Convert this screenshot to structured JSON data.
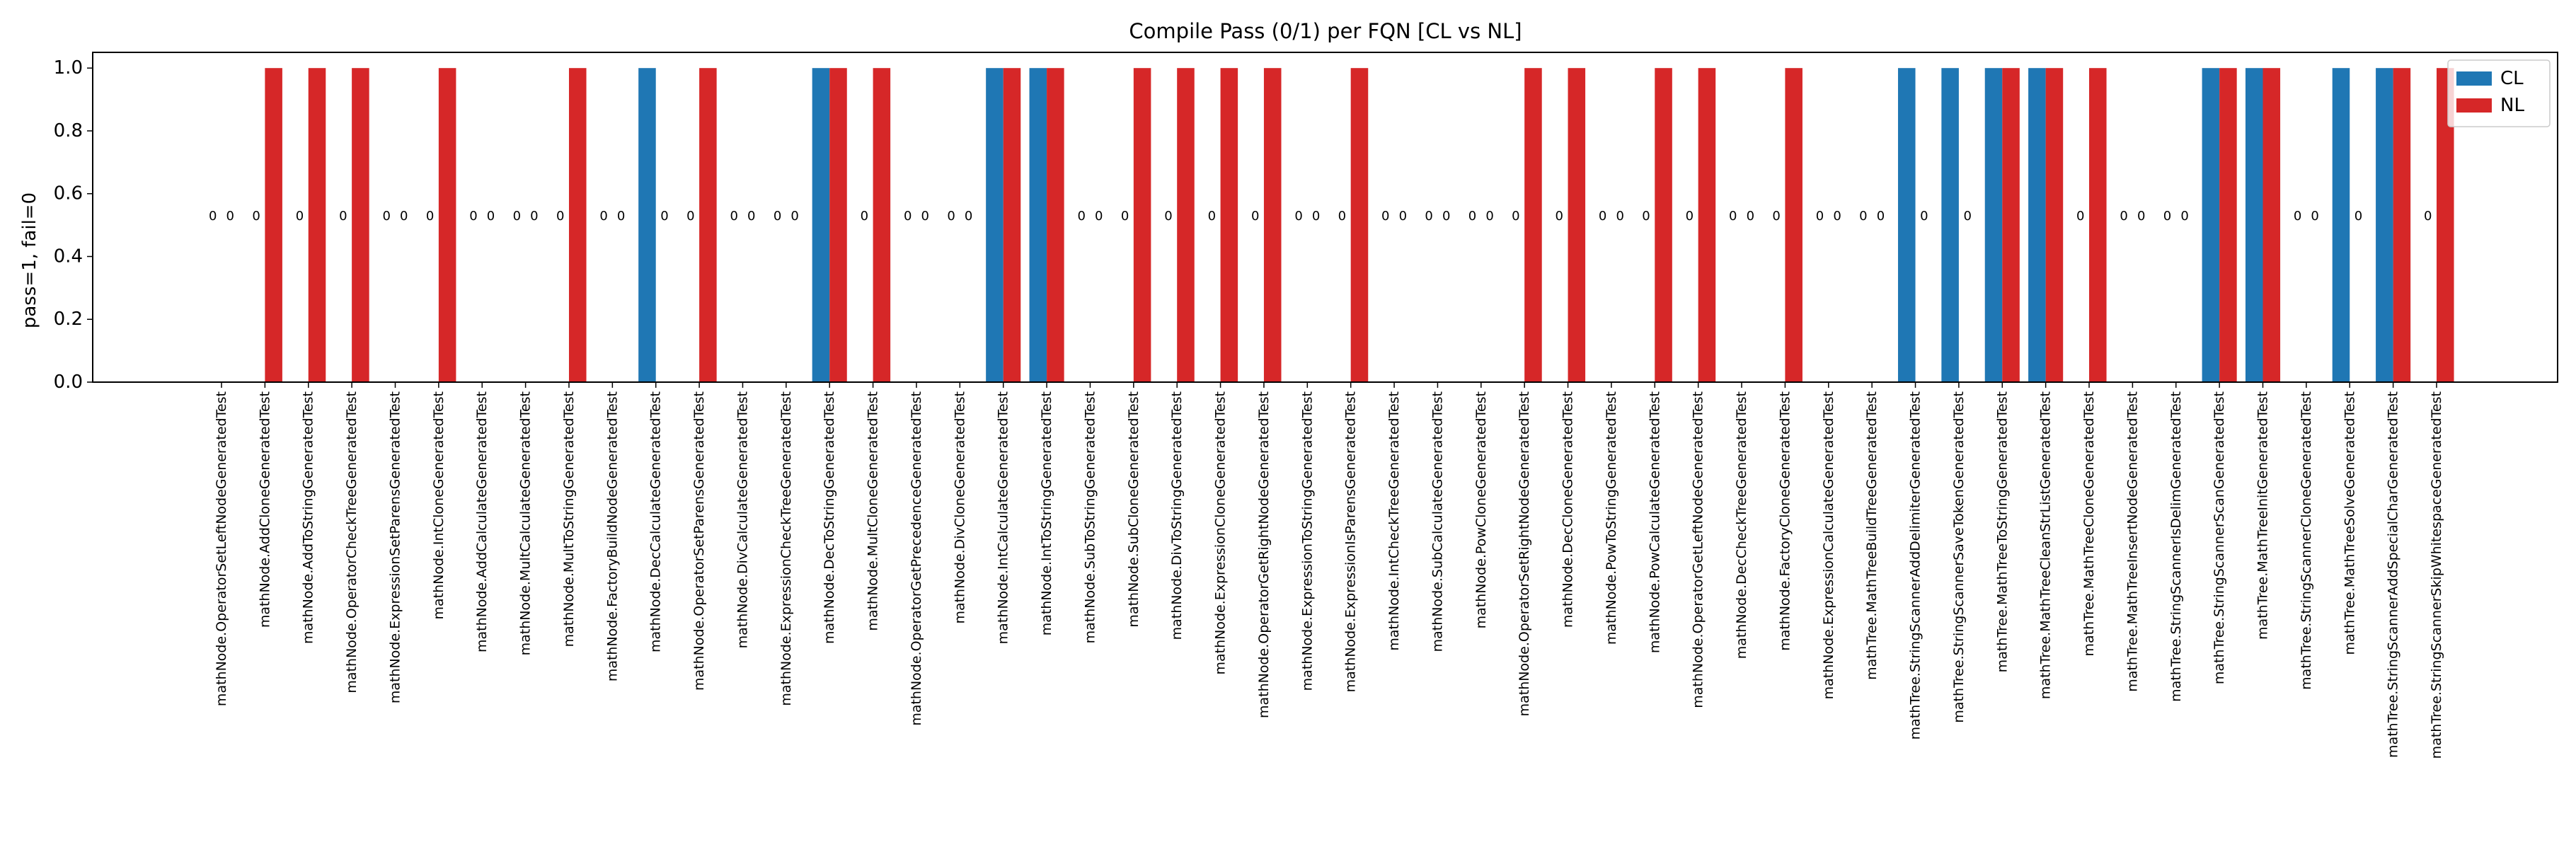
{
  "chart_data": {
    "type": "bar",
    "title": "Compile Pass (0/1) per FQN [CL vs NL]",
    "xlabel": "",
    "ylabel": "pass=1, fail=0",
    "ylim": [
      -0.0,
      1.05
    ],
    "yticks": [
      "0.0",
      "0.2",
      "0.4",
      "0.6",
      "0.8",
      "1.0"
    ],
    "grid": false,
    "legend_position": "top-right",
    "zero_label": "0",
    "categories": [
      "mathNode.OperatorSetLeftNodeGeneratedTest",
      "mathNode.AddCloneGeneratedTest",
      "mathNode.AddToStringGeneratedTest",
      "mathNode.OperatorCheckTreeGeneratedTest",
      "mathNode.ExpressionSetParensGeneratedTest",
      "mathNode.IntCloneGeneratedTest",
      "mathNode.AddCalculateGeneratedTest",
      "mathNode.MultCalculateGeneratedTest",
      "mathNode.MultToStringGeneratedTest",
      "mathNode.FactoryBuildNodeGeneratedTest",
      "mathNode.DecCalculateGeneratedTest",
      "mathNode.OperatorSetParensGeneratedTest",
      "mathNode.DivCalculateGeneratedTest",
      "mathNode.ExpressionCheckTreeGeneratedTest",
      "mathNode.DecToStringGeneratedTest",
      "mathNode.MultCloneGeneratedTest",
      "mathNode.OperatorGetPrecedenceGeneratedTest",
      "mathNode.DivCloneGeneratedTest",
      "mathNode.IntCalculateGeneratedTest",
      "mathNode.IntToStringGeneratedTest",
      "mathNode.SubToStringGeneratedTest",
      "mathNode.SubCloneGeneratedTest",
      "mathNode.DivToStringGeneratedTest",
      "mathNode.ExpressionCloneGeneratedTest",
      "mathNode.OperatorGetRightNodeGeneratedTest",
      "mathNode.ExpressionToStringGeneratedTest",
      "mathNode.ExpressionIsParensGeneratedTest",
      "mathNode.IntCheckTreeGeneratedTest",
      "mathNode.SubCalculateGeneratedTest",
      "mathNode.PowCloneGeneratedTest",
      "mathNode.OperatorSetRightNodeGeneratedTest",
      "mathNode.DecCloneGeneratedTest",
      "mathNode.PowToStringGeneratedTest",
      "mathNode.PowCalculateGeneratedTest",
      "mathNode.OperatorGetLeftNodeGeneratedTest",
      "mathNode.DecCheckTreeGeneratedTest",
      "mathNode.FactoryCloneGeneratedTest",
      "mathNode.ExpressionCalculateGeneratedTest",
      "mathTree.MathTreeBuildTreeGeneratedTest",
      "mathTree.StringScannerAddDelimiterGeneratedTest",
      "mathTree.StringScannerSaveTokenGeneratedTest",
      "mathTree.MathTreeToStringGeneratedTest",
      "mathTree.MathTreeCleanStrListGeneratedTest",
      "mathTree.MathTreeCloneGeneratedTest",
      "mathTree.MathTreeInsertNodeGeneratedTest",
      "mathTree.StringScannerIsDelimGeneratedTest",
      "mathTree.StringScannerScanGeneratedTest",
      "mathTree.MathTreeInitGeneratedTest",
      "mathTree.StringScannerCloneGeneratedTest",
      "mathTree.MathTreeSolveGeneratedTest",
      "mathTree.StringScannerAddSpecialCharGeneratedTest",
      "mathTree.StringScannerSkipWhitespaceGeneratedTest"
    ],
    "series": [
      {
        "name": "CL",
        "color": "#1f77b4",
        "values": [
          0,
          0,
          0,
          0,
          0,
          0,
          0,
          0,
          0,
          0,
          1,
          0,
          0,
          0,
          1,
          0,
          0,
          0,
          1,
          1,
          0,
          0,
          0,
          0,
          0,
          0,
          0,
          0,
          0,
          0,
          0,
          0,
          0,
          0,
          0,
          0,
          0,
          0,
          0,
          1,
          1,
          1,
          1,
          0,
          0,
          0,
          1,
          1,
          0,
          1,
          1,
          0
        ]
      },
      {
        "name": "NL",
        "color": "#d62728",
        "values": [
          0,
          1,
          1,
          1,
          0,
          1,
          0,
          0,
          1,
          0,
          0,
          1,
          0,
          0,
          1,
          1,
          0,
          0,
          1,
          1,
          0,
          1,
          1,
          1,
          1,
          0,
          1,
          0,
          0,
          0,
          1,
          1,
          0,
          1,
          1,
          0,
          1,
          0,
          0,
          0,
          0,
          1,
          1,
          1,
          0,
          0,
          1,
          1,
          0,
          0,
          1,
          1
        ]
      }
    ]
  }
}
